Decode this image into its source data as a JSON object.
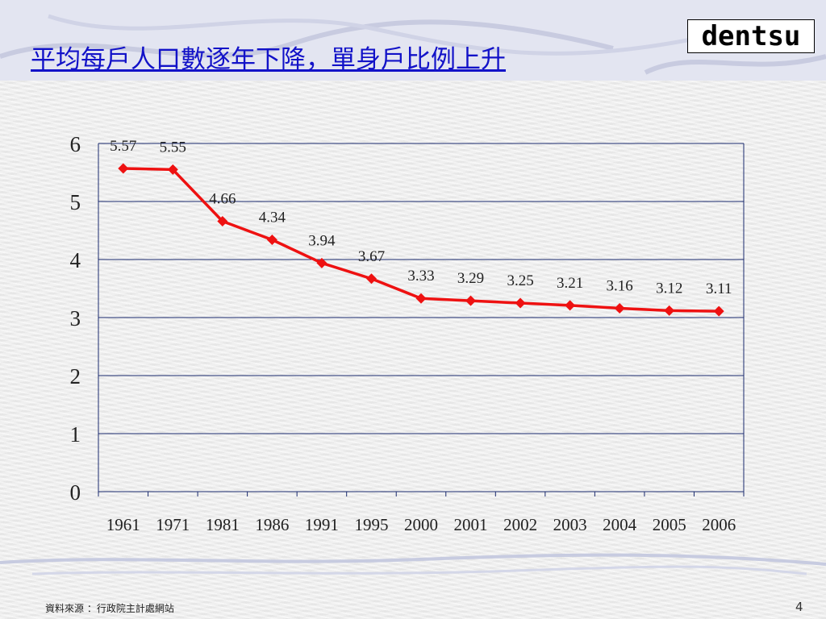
{
  "slide": {
    "title": "平均每戶人口數逐年下降，單身戶比例上升",
    "logo_text": "dentsu",
    "source_note": "資料來源 ：行政院主計處網站",
    "page_number": "4"
  },
  "colors": {
    "title": "#1212c8",
    "line": "#ee1111",
    "grid": "#1a2a6e",
    "banner": "#e3e5f1"
  },
  "chart_data": {
    "type": "line",
    "title": "",
    "xlabel": "",
    "ylabel": "",
    "categories": [
      "1961",
      "1971",
      "1981",
      "1986",
      "1991",
      "1995",
      "2000",
      "2001",
      "2002",
      "2003",
      "2004",
      "2005",
      "2006"
    ],
    "series": [
      {
        "values": [
          5.57,
          5.55,
          4.66,
          4.34,
          3.94,
          3.67,
          3.33,
          3.29,
          3.25,
          3.21,
          3.16,
          3.12,
          3.11
        ],
        "labels": [
          "5.57",
          "5.55",
          "4.66",
          "4.34",
          "3.94",
          "3.67",
          "3.33",
          "3.29",
          "3.25",
          "3.21",
          "3.16",
          "3.12",
          "3.11"
        ]
      }
    ],
    "ylim": [
      0,
      6
    ],
    "yticks": [
      "0",
      "1",
      "2",
      "3",
      "4",
      "5",
      "6"
    ],
    "grid": true,
    "legend": "none",
    "marker": "diamond"
  }
}
